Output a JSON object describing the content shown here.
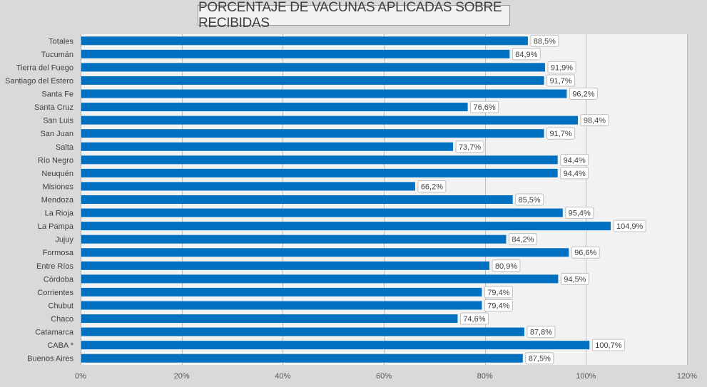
{
  "chart_data": {
    "type": "bar",
    "orientation": "horizontal",
    "title": "PORCENTAJE DE VACUNAS APLICADAS SOBRE RECIBIDAS",
    "xlabel": "",
    "ylabel": "",
    "xlim": [
      0,
      120
    ],
    "x_ticks": [
      "0%",
      "20%",
      "40%",
      "60%",
      "80%",
      "100%",
      "120%"
    ],
    "x_tick_values": [
      0,
      20,
      40,
      60,
      80,
      100,
      120
    ],
    "categories": [
      "Totales",
      "Tucumán",
      "Tierra del Fuego",
      "Santiago del Estero",
      "Santa Fe",
      "Santa Cruz",
      "San Luis",
      "San Juan",
      "Salta",
      "Río Negro",
      "Neuquén",
      "Misiones",
      "Mendoza",
      "La Rioja",
      "La Pampa",
      "Jujuy",
      "Formosa",
      "Entre Ríos",
      "Córdoba",
      "Corrientes",
      "Chubut",
      "Chaco",
      "Catamarca",
      "CABA *",
      "Buenos Aires"
    ],
    "values": [
      88.5,
      84.9,
      91.9,
      91.7,
      96.2,
      76.6,
      98.4,
      91.7,
      73.7,
      94.4,
      94.4,
      66.2,
      85.5,
      95.4,
      104.9,
      84.2,
      96.6,
      80.9,
      94.5,
      79.4,
      79.4,
      74.6,
      87.8,
      100.7,
      87.5
    ],
    "data_labels": [
      "88,5%",
      "84,9%",
      "91,9%",
      "91,7%",
      "96,2%",
      "76,6%",
      "98,4%",
      "91,7%",
      "73,7%",
      "94,4%",
      "94,4%",
      "66,2%",
      "85,5%",
      "95,4%",
      "104,9%",
      "84,2%",
      "96,6%",
      "80,9%",
      "94,5%",
      "79,4%",
      "79,4%",
      "74,6%",
      "87,8%",
      "100,7%",
      "87,5%"
    ],
    "bar_color": "#0070c0",
    "grid": true,
    "legend": "none"
  }
}
